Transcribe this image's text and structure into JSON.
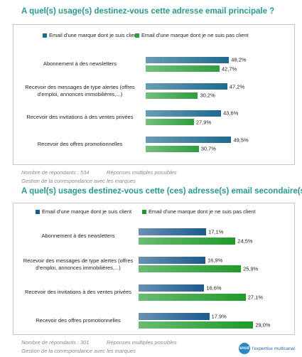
{
  "chart_data": [
    {
      "type": "bar",
      "orientation": "horizontal",
      "title": "A quel(s) usage(s) destinez-vous cette adresse email principale ?",
      "categories": [
        "Abonnement à  des newsletters",
        "Recevoir des messages de type alertes (offres d'emploi, annonces immobilières,...)",
        "Recevoir des invitations à  des ventes privées",
        "Recevoir des offres promotionnelles"
      ],
      "series": [
        {
          "name": "Email d'une marque dont je suis client",
          "color": "#1f6a8e",
          "values": [
            48.2,
            47.2,
            43.6,
            49.5
          ],
          "value_labels": [
            "48,2%",
            "47,2%",
            "43,6%",
            "49,5%"
          ]
        },
        {
          "name": "Email d'une marque dont je ne suis pas client",
          "color": "#2e9e3e",
          "values": [
            42.7,
            30.2,
            27.9,
            30.7
          ],
          "value_labels": [
            "42,7%",
            "30,2%",
            "27,9%",
            "30,7%"
          ]
        }
      ],
      "xlim": [
        0,
        60
      ],
      "notes": [
        "Nombre de répondants : 534",
        "Réponses multiples possibles",
        "Gestion de la correspondance avec les marques"
      ]
    },
    {
      "type": "bar",
      "orientation": "horizontal",
      "title": "A quel(s) usages destinez-vous cette (ces) adresse(s) email secondaire(s) ?",
      "categories": [
        "Abonnement à  des newsletters",
        "Recevoir des messages de type alertes (offres d'emploi, annonces immobilières,...)",
        "Recevoir des invitations à  des ventes privées",
        "Recevoir des offres promotionnelles"
      ],
      "series": [
        {
          "name": "Email d'une marque dont je suis client",
          "color": "#1c5a8c",
          "values": [
            17.1,
            16.9,
            16.6,
            17.9
          ],
          "value_labels": [
            "17,1%",
            "16,9%",
            "16,6%",
            "17,9%"
          ]
        },
        {
          "name": "Email d'une marque dont je ne suis pas client",
          "color": "#1f9a2a",
          "values": [
            24.5,
            25.9,
            27.1,
            29.0
          ],
          "value_labels": [
            "24,5%",
            "25,9%",
            "27,1%",
            "29,0%"
          ]
        }
      ],
      "xlim": [
        0,
        32
      ],
      "notes": [
        "Nombre de répondants : 301",
        "Réponses multiples possibles",
        "Gestion de la correspondance avec les marques"
      ]
    }
  ],
  "logo": {
    "name": "sncd",
    "tagline": "l'expertise multicanal"
  }
}
